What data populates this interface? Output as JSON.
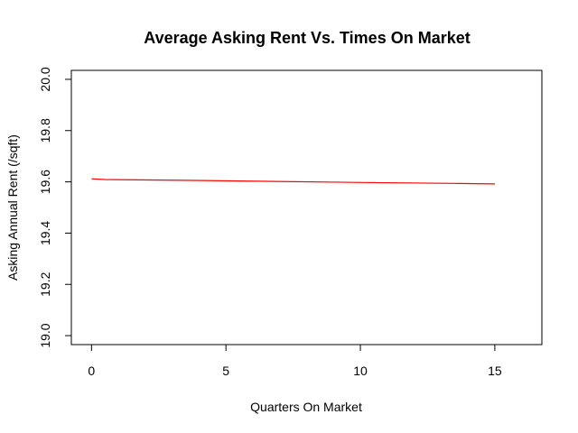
{
  "chart_data": {
    "type": "line",
    "title": "Average Asking Rent Vs. Times On Market",
    "xlabel": "Quarters On Market",
    "ylabel": "Asking Annual Rent (/sqft)",
    "xlim": [
      -0.75,
      16.75
    ],
    "ylim": [
      18.965,
      20.035
    ],
    "xticks": [
      0,
      5,
      10,
      15
    ],
    "xtick_labels": [
      "0",
      "5",
      "10",
      "15"
    ],
    "yticks": [
      19.0,
      19.2,
      19.4,
      19.6,
      19.8,
      20.0
    ],
    "ytick_labels": [
      "19.0",
      "19.2",
      "19.4",
      "19.6",
      "19.8",
      "20.0"
    ],
    "grid": false,
    "series": [
      {
        "color": "#ff0000",
        "x": [
          0,
          0.5,
          3.5,
          6.5,
          10.5,
          13.5,
          15
        ],
        "y": [
          19.612,
          19.609,
          19.606,
          19.602,
          19.597,
          19.594,
          19.592
        ]
      }
    ]
  }
}
